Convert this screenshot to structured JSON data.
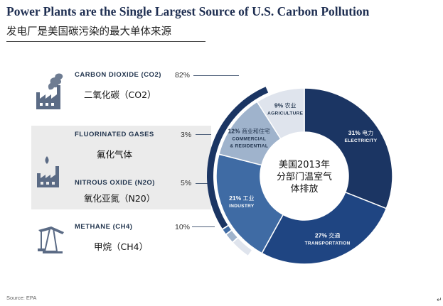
{
  "title": "Power Plants are the Single Largest Source of U.S. Carbon Pollution",
  "subtitle": "发电厂是美国碳污染的最大单体来源",
  "source": "Source: EPA",
  "return_mark": "↵",
  "gases": [
    {
      "name": "CARBON DIOXIDE (CO2)",
      "cn": "二氧化碳（CO2）",
      "pct": "82%",
      "icon": "factory-icon"
    },
    {
      "name": "FLUORINATED GASES",
      "cn": "氟化气体",
      "pct": "3%",
      "icon": "chemical-plant-icon"
    },
    {
      "name": "NITROUS OXIDE (N2O)",
      "cn": "氧化亚氮（N20）",
      "pct": "5%",
      "icon": "chemical-plant-icon"
    },
    {
      "name": "METHANE (CH4)",
      "cn": "甲烷（CH4）",
      "pct": "10%",
      "icon": "oil-pump-icon"
    }
  ],
  "colors": {
    "navy": "#1b3563",
    "dark_blue": "#1f4582",
    "mid_blue": "#3f6ba4",
    "pale_blue": "#dfe4ed",
    "light_blue": "#9fb3cc",
    "text_navy": "#23364f"
  },
  "chart_data": [
    {
      "type": "bar",
      "orientation": "stacked-arc",
      "categories": [
        "CARBON DIOXIDE (CO2)",
        "FLUORINATED GASES",
        "NITROUS OXIDE (N2O)",
        "METHANE (CH4)"
      ],
      "values": [
        82,
        3,
        5,
        10
      ],
      "unit": "%"
    },
    {
      "type": "pie",
      "title": "美国2013年分部门温室气体排放",
      "title_lines": [
        "美国2013年",
        "分部门温室气",
        "体排放"
      ],
      "slices": [
        {
          "label": "ELECTRICITY",
          "cn": "电力",
          "value": 31,
          "label_lines": [
            "ELECTRICITY"
          ]
        },
        {
          "label": "TRANSPORTATION",
          "cn": "交通",
          "value": 27,
          "label_lines": [
            "TRANSPORTATION"
          ]
        },
        {
          "label": "INDUSTRY",
          "cn": "工业",
          "value": 21,
          "label_lines": [
            "INDUSTRY"
          ]
        },
        {
          "label": "COMMERCIAL & RESIDENTIAL",
          "cn": "商业和住宅",
          "value": 12,
          "label_lines": [
            "COMMERCIAL",
            "& RESIDENTIAL"
          ]
        },
        {
          "label": "AGRICULTURE",
          "cn": "农业",
          "value": 9,
          "label_lines": [
            "AGRICULTURE"
          ]
        }
      ]
    }
  ]
}
